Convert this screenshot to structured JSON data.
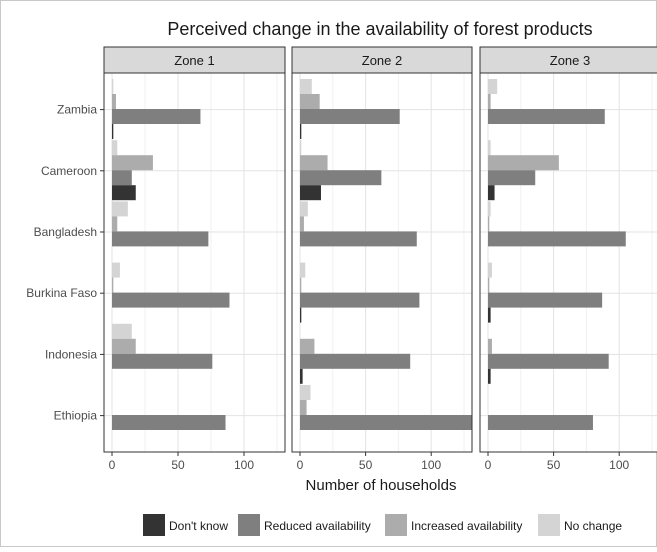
{
  "chart_data": {
    "type": "bar",
    "orientation": "horizontal",
    "title": "Perceived change in the availability of forest products",
    "xlabel": "Number of households",
    "ylabel": "",
    "xlim": [
      0,
      125
    ],
    "x_ticks": [
      0,
      50,
      100
    ],
    "grid": true,
    "legend_position": "bottom",
    "categories": [
      "Zambia",
      "Cameroon",
      "Bangladesh",
      "Burkina Faso",
      "Indonesia",
      "Ethiopia"
    ],
    "series_colors": {
      "Don't know": "#333333",
      "Reduced availability": "#7f7f7f",
      "Increased availability": "#acacac",
      "No change": "#d4d4d4"
    },
    "facets": [
      {
        "name": "Zone 1",
        "series": [
          {
            "name": "Don't know",
            "values": [
              1,
              18,
              0,
              0,
              0,
              0
            ]
          },
          {
            "name": "Reduced availability",
            "values": [
              67,
              15,
              73,
              89,
              76,
              86
            ]
          },
          {
            "name": "Increased availability",
            "values": [
              3,
              31,
              4,
              1,
              18,
              0
            ]
          },
          {
            "name": "No change",
            "values": [
              1,
              4,
              12,
              6,
              15,
              0
            ]
          }
        ]
      },
      {
        "name": "Zone 2",
        "series": [
          {
            "name": "Don't know",
            "values": [
              1,
              16,
              0,
              1,
              2,
              0
            ]
          },
          {
            "name": "Reduced availability",
            "values": [
              76,
              62,
              89,
              91,
              84,
              131
            ]
          },
          {
            "name": "Increased availability",
            "values": [
              15,
              21,
              3,
              1,
              11,
              5
            ]
          },
          {
            "name": "No change",
            "values": [
              9,
              1,
              6,
              4,
              0,
              8
            ]
          }
        ]
      },
      {
        "name": "Zone 3",
        "series": [
          {
            "name": "Don't know",
            "values": [
              0,
              5,
              0,
              2,
              2,
              0
            ]
          },
          {
            "name": "Reduced availability",
            "values": [
              89,
              36,
              105,
              87,
              92,
              80
            ]
          },
          {
            "name": "Increased availability",
            "values": [
              2,
              54,
              1,
              1,
              3,
              0
            ]
          },
          {
            "name": "No change",
            "values": [
              7,
              2,
              2,
              3,
              0,
              0
            ]
          }
        ]
      }
    ]
  }
}
